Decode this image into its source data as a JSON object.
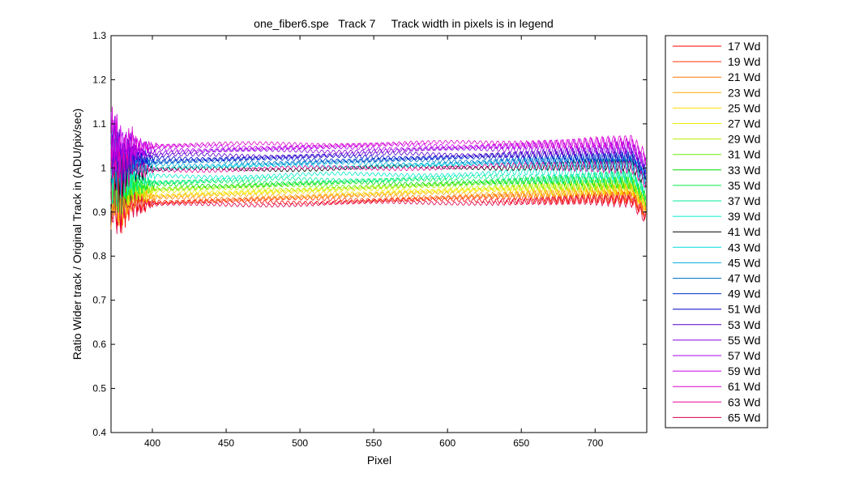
{
  "chart_data": {
    "type": "line",
    "title": "one_fiber6.spe   Track 7     Track width in pixels is in legend",
    "xlabel": "Pixel",
    "ylabel": "Ratio Wider track / Original Track in (ADU/pix/sec)",
    "xlim": [
      372,
      735
    ],
    "ylim": [
      0.4,
      1.3
    ],
    "xticks": [
      400,
      450,
      500,
      550,
      600,
      650,
      700
    ],
    "yticks": [
      0.4,
      0.5,
      0.6,
      0.7,
      0.8,
      0.9,
      1,
      1.1,
      1.2,
      1.3
    ],
    "grid": false,
    "legend_position": "outside-right",
    "series": [
      {
        "name": "17 Wd",
        "color": "#ff0000",
        "level": 0.925
      },
      {
        "name": "19 Wd",
        "color": "#ff3300",
        "level": 0.93
      },
      {
        "name": "21 Wd",
        "color": "#ff7700",
        "level": 0.935
      },
      {
        "name": "23 Wd",
        "color": "#ffaa00",
        "level": 0.94
      },
      {
        "name": "25 Wd",
        "color": "#ffdd00",
        "level": 0.945
      },
      {
        "name": "27 Wd",
        "color": "#eeee00",
        "level": 0.95
      },
      {
        "name": "29 Wd",
        "color": "#bbee00",
        "level": 0.955
      },
      {
        "name": "31 Wd",
        "color": "#66ee00",
        "level": 0.96
      },
      {
        "name": "33 Wd",
        "color": "#00dd00",
        "level": 0.965
      },
      {
        "name": "35 Wd",
        "color": "#00ee44",
        "level": 0.97
      },
      {
        "name": "37 Wd",
        "color": "#00ee99",
        "level": 0.975
      },
      {
        "name": "39 Wd",
        "color": "#00eecc",
        "level": 0.985
      },
      {
        "name": "41 Wd",
        "color": "#000000",
        "level": 1.0
      },
      {
        "name": "43 Wd",
        "color": "#00dddd",
        "level": 1.005
      },
      {
        "name": "45 Wd",
        "color": "#00aadd",
        "level": 1.01
      },
      {
        "name": "47 Wd",
        "color": "#0077cc",
        "level": 1.015
      },
      {
        "name": "49 Wd",
        "color": "#0033cc",
        "level": 1.02
      },
      {
        "name": "51 Wd",
        "color": "#0000cc",
        "level": 1.025
      },
      {
        "name": "53 Wd",
        "color": "#5500cc",
        "level": 1.03
      },
      {
        "name": "55 Wd",
        "color": "#8800dd",
        "level": 1.04
      },
      {
        "name": "57 Wd",
        "color": "#aa00ee",
        "level": 1.045
      },
      {
        "name": "59 Wd",
        "color": "#cc00ee",
        "level": 1.05
      },
      {
        "name": "61 Wd",
        "color": "#dd00cc",
        "level": 1.055
      },
      {
        "name": "63 Wd",
        "color": "#ee0099",
        "level": 1.0
      },
      {
        "name": "65 Wd",
        "color": "#dd0044",
        "level": 0.92
      }
    ]
  }
}
